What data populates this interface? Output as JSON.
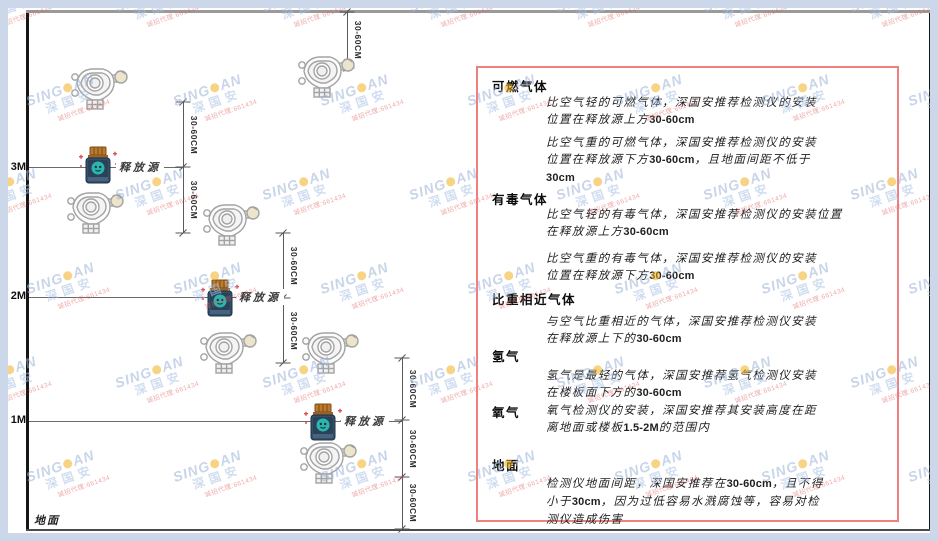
{
  "watermark": {
    "brand_prefix": "SING",
    "brand_suffix": "AN",
    "dot_icon": "gear-dot-icon",
    "cjk": "深国安",
    "agent_line": "诚招代理:661434"
  },
  "diagram": {
    "height_labels": [
      "3M",
      "2M",
      "1M"
    ],
    "ground_label": "地面",
    "release_source_label": "释放源",
    "dimension_label": "30-60CM"
  },
  "panel": {
    "border_color": "#f08080",
    "sections": [
      {
        "heading": "可燃气体",
        "paras": [
          {
            "lines": [
              {
                "runs": [
                  {
                    "t": "比空气轻的可燃气体，深国安推荐检测仪的安装"
                  }
                ]
              },
              {
                "runs": [
                  {
                    "t": "位置在释放源上方"
                  },
                  {
                    "t": "30-60cm",
                    "b": true
                  }
                ]
              }
            ]
          },
          {
            "lines": [
              {
                "runs": [
                  {
                    "t": "比空气重的可燃气体，深国安推荐检测仪的安装"
                  }
                ]
              },
              {
                "runs": [
                  {
                    "t": "位置在释放源下方"
                  },
                  {
                    "t": "30-60cm",
                    "b": true
                  },
                  {
                    "t": "，且地面间距不低于"
                  }
                ]
              },
              {
                "runs": [
                  {
                    "t": "30cm",
                    "b": true
                  }
                ]
              }
            ]
          }
        ]
      },
      {
        "heading": "有毒气体",
        "paras": [
          {
            "lines": [
              {
                "runs": [
                  {
                    "t": "比空气轻的有毒气体，深国安推荐检测仪的安装位置"
                  }
                ]
              },
              {
                "runs": [
                  {
                    "t": "在释放源上方"
                  },
                  {
                    "t": "30-60cm",
                    "b": true
                  }
                ]
              }
            ]
          },
          {
            "lines": [
              {
                "runs": [
                  {
                    "t": "比空气重的有毒气体，深国安推荐检测仪的安装"
                  }
                ]
              },
              {
                "runs": [
                  {
                    "t": "位置在释放源下方"
                  },
                  {
                    "t": "30-60cm",
                    "b": true
                  }
                ]
              }
            ]
          }
        ]
      },
      {
        "heading": "比重相近气体",
        "paras": [
          {
            "lines": [
              {
                "runs": [
                  {
                    "t": "与空气比重相近的气体，深国安推荐检测仪安装"
                  }
                ]
              },
              {
                "runs": [
                  {
                    "t": "在释放源上下的"
                  },
                  {
                    "t": "30-60cm",
                    "b": true
                  }
                ]
              }
            ]
          }
        ]
      },
      {
        "heading": "氢气",
        "paras": [
          {
            "lines": [
              {
                "runs": [
                  {
                    "t": "氢气是最轻的气体，深国安推荐氢气检测仪安装"
                  }
                ]
              },
              {
                "runs": [
                  {
                    "t": "在楼板面下方的"
                  },
                  {
                    "t": "30-60cm",
                    "b": true
                  }
                ]
              }
            ]
          }
        ]
      },
      {
        "heading": "氧气",
        "paras": [
          {
            "lines": [
              {
                "runs": [
                  {
                    "t": "氧气检测仪的安装，深国安推荐其安装高度在距"
                  }
                ]
              },
              {
                "runs": [
                  {
                    "t": "离地面或楼板"
                  },
                  {
                    "t": "1.5-2M",
                    "b": true
                  },
                  {
                    "t": "的范围内"
                  }
                ]
              }
            ]
          }
        ]
      },
      {
        "heading": "地面",
        "paras": [
          {
            "lines": [
              {
                "runs": [
                  {
                    "t": "检测仪地面间距，深国安推荐在"
                  },
                  {
                    "t": "30-60cm",
                    "b": true
                  },
                  {
                    "t": "，且不得"
                  }
                ]
              },
              {
                "runs": [
                  {
                    "t": "小于"
                  },
                  {
                    "t": "30cm",
                    "b": true
                  },
                  {
                    "t": "，因为过低容易水溅腐蚀等，容易对检"
                  }
                ]
              },
              {
                "runs": [
                  {
                    "t": "测仪造成伤害"
                  }
                ]
              }
            ]
          }
        ]
      }
    ]
  }
}
